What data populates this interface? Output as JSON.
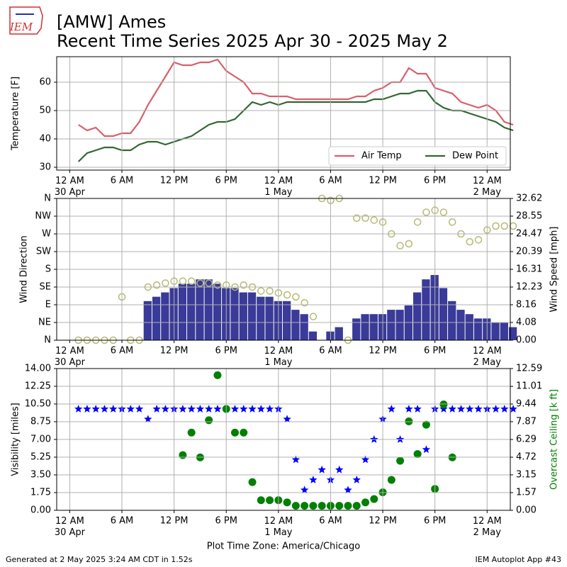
{
  "header": {
    "logo": "IEM",
    "title": "[AMW] Ames",
    "subtitle": "Recent Time Series 2025 Apr 30 - 2025 May 2"
  },
  "chart_data": [
    {
      "type": "line",
      "ylabel": "Temperature [F]",
      "ylim": [
        29,
        69
      ],
      "yticks": [
        30,
        40,
        50,
        60
      ],
      "grid": true,
      "legend": "lower right",
      "xlim": [
        "29 Apr 22:30",
        "2 May 02:40"
      ],
      "xticks": [
        {
          "value": "30 Apr 00:00",
          "label": "12 AM\n30 Apr"
        },
        {
          "value": "30 Apr 06:00",
          "label": "6 AM"
        },
        {
          "value": "30 Apr 12:00",
          "label": "12 PM"
        },
        {
          "value": "30 Apr 18:00",
          "label": "6 PM"
        },
        {
          "value": "1 May 00:00",
          "label": "12 AM\n1 May"
        },
        {
          "value": "1 May 06:00",
          "label": "6 AM"
        },
        {
          "value": "1 May 12:00",
          "label": "12 PM"
        },
        {
          "value": "1 May 18:00",
          "label": "6 PM"
        },
        {
          "value": "2 May 00:00",
          "label": "12 AM\n2 May"
        }
      ],
      "x": [
        "30 Apr 01:00",
        "30 Apr 02:00",
        "30 Apr 03:00",
        "30 Apr 04:00",
        "30 Apr 05:00",
        "30 Apr 06:00",
        "30 Apr 07:00",
        "30 Apr 08:00",
        "30 Apr 09:00",
        "30 Apr 10:00",
        "30 Apr 11:00",
        "30 Apr 12:00",
        "30 Apr 13:00",
        "30 Apr 14:00",
        "30 Apr 15:00",
        "30 Apr 16:00",
        "30 Apr 17:00",
        "30 Apr 18:00",
        "30 Apr 19:00",
        "30 Apr 20:00",
        "30 Apr 21:00",
        "30 Apr 22:00",
        "30 Apr 23:00",
        "1 May 00:00",
        "1 May 01:00",
        "1 May 02:00",
        "1 May 03:00",
        "1 May 04:00",
        "1 May 05:00",
        "1 May 06:00",
        "1 May 07:00",
        "1 May 08:00",
        "1 May 09:00",
        "1 May 10:00",
        "1 May 11:00",
        "1 May 12:00",
        "1 May 13:00",
        "1 May 14:00",
        "1 May 15:00",
        "1 May 16:00",
        "1 May 17:00",
        "1 May 18:00",
        "1 May 19:00",
        "1 May 20:00",
        "1 May 21:00",
        "1 May 22:00",
        "1 May 23:00",
        "2 May 00:00",
        "2 May 01:00",
        "2 May 02:00",
        "2 May 03:00"
      ],
      "series": [
        {
          "name": "Air Temp",
          "color": "#d6606c",
          "values": [
            45,
            43,
            44,
            41,
            41,
            42,
            42,
            46,
            52,
            57,
            62,
            67,
            66,
            66,
            67,
            67,
            68,
            64,
            62,
            60,
            56,
            56,
            55,
            55,
            55,
            54,
            54,
            54,
            54,
            54,
            54,
            54,
            55,
            55,
            57,
            58,
            60,
            60,
            65,
            63,
            63,
            58,
            57,
            56,
            53,
            52,
            51,
            52,
            50,
            46,
            45
          ]
        },
        {
          "name": "Dew Point",
          "color": "#336633",
          "values": [
            32,
            35,
            36,
            37,
            37,
            36,
            36,
            38,
            39,
            39,
            38,
            39,
            40,
            41,
            43,
            45,
            46,
            46,
            47,
            50,
            53,
            52,
            53,
            52,
            53,
            53,
            53,
            53,
            53,
            53,
            53,
            53,
            53,
            53,
            54,
            54,
            55,
            56,
            56,
            57,
            57,
            53,
            51,
            50,
            50,
            49,
            48,
            47,
            46,
            44,
            43
          ]
        }
      ]
    },
    {
      "type": "wind",
      "ylabel": "Wind Direction",
      "y2label": "Wind Speed [mph]",
      "ylim": [
        0,
        360
      ],
      "grid": true,
      "yticks": [
        {
          "value": 0,
          "label": "N"
        },
        {
          "value": 45,
          "label": "NE"
        },
        {
          "value": 90,
          "label": "E"
        },
        {
          "value": 135,
          "label": "SE"
        },
        {
          "value": 180,
          "label": "S"
        },
        {
          "value": 225,
          "label": "SW"
        },
        {
          "value": 270,
          "label": "W"
        },
        {
          "value": 315,
          "label": "NW"
        },
        {
          "value": 360,
          "label": "N"
        }
      ],
      "y2lim": [
        0,
        32.62
      ],
      "y2ticks": [
        {
          "value": 0,
          "label": "0.00"
        },
        4.08,
        8.16,
        12.23,
        16.31,
        20.39,
        24.47,
        28.55,
        32.62
      ],
      "xlim": [
        "29 Apr 22:30",
        "2 May 02:40"
      ],
      "xticks": [
        {
          "value": "30 Apr 00:00",
          "label": "12 AM\n30 Apr"
        },
        {
          "value": "30 Apr 06:00",
          "label": "6 AM"
        },
        {
          "value": "30 Apr 12:00",
          "label": "12 PM"
        },
        {
          "value": "30 Apr 18:00",
          "label": "6 PM"
        },
        {
          "value": "1 May 00:00",
          "label": "12 AM\n1 May"
        },
        {
          "value": "1 May 06:00",
          "label": "6 AM"
        },
        {
          "value": "1 May 12:00",
          "label": "12 PM"
        },
        {
          "value": "1 May 18:00",
          "label": "6 PM"
        },
        {
          "value": "2 May 00:00",
          "label": "12 AM\n2 May"
        }
      ],
      "x": [
        "30 Apr 01:00",
        "30 Apr 02:00",
        "30 Apr 03:00",
        "30 Apr 04:00",
        "30 Apr 05:00",
        "30 Apr 06:00",
        "30 Apr 07:00",
        "30 Apr 08:00",
        "30 Apr 09:00",
        "30 Apr 10:00",
        "30 Apr 11:00",
        "30 Apr 12:00",
        "30 Apr 13:00",
        "30 Apr 14:00",
        "30 Apr 15:00",
        "30 Apr 16:00",
        "30 Apr 17:00",
        "30 Apr 18:00",
        "30 Apr 19:00",
        "30 Apr 20:00",
        "30 Apr 21:00",
        "30 Apr 22:00",
        "30 Apr 23:00",
        "1 May 00:00",
        "1 May 01:00",
        "1 May 02:00",
        "1 May 03:00",
        "1 May 04:00",
        "1 May 05:00",
        "1 May 06:00",
        "1 May 07:00",
        "1 May 08:00",
        "1 May 09:00",
        "1 May 10:00",
        "1 May 11:00",
        "1 May 12:00",
        "1 May 13:00",
        "1 May 14:00",
        "1 May 15:00",
        "1 May 16:00",
        "1 May 17:00",
        "1 May 18:00",
        "1 May 19:00",
        "1 May 20:00",
        "1 May 21:00",
        "1 May 22:00",
        "1 May 23:00",
        "2 May 00:00",
        "2 May 01:00",
        "2 May 02:00",
        "2 May 03:00"
      ],
      "series": [
        {
          "mark": "bar",
          "axis": "y2",
          "color": "#3a3a98",
          "values": [
            0,
            0,
            0,
            0,
            0,
            0,
            0,
            0,
            9,
            10,
            11,
            12,
            13,
            13,
            14,
            14,
            13,
            12,
            12,
            11,
            11,
            10,
            10,
            9,
            9,
            7,
            6,
            2,
            0,
            2,
            3,
            0,
            5,
            6,
            6,
            6,
            7,
            7,
            8,
            11,
            14,
            15,
            12,
            9,
            7,
            6,
            5,
            5,
            4,
            4,
            3
          ]
        },
        {
          "mark": "circle",
          "color": "#b5b973",
          "values": [
            0,
            0,
            0,
            0,
            0,
            110,
            0,
            0,
            135,
            140,
            145,
            150,
            150,
            150,
            145,
            145,
            140,
            140,
            135,
            140,
            135,
            125,
            125,
            120,
            115,
            110,
            95,
            60,
            360,
            355,
            360,
            0,
            310,
            310,
            305,
            300,
            270,
            240,
            245,
            300,
            325,
            330,
            325,
            300,
            270,
            250,
            255,
            280,
            290,
            290,
            290
          ]
        }
      ]
    },
    {
      "type": "scatter",
      "ylabel": "Visibility [miles]",
      "y2label": "Overcast Ceiling [k ft]",
      "y2label_color": "#008000",
      "xlabel": "Plot Time Zone: America/Chicago",
      "grid": true,
      "ylim": [
        0,
        14
      ],
      "yticks": [
        {
          "value": 0,
          "label": "0.00"
        },
        1.75,
        {
          "value": 3.5,
          "label": "3.50"
        },
        5.25,
        {
          "value": 7,
          "label": "7.00"
        },
        8.75,
        {
          "value": 10.5,
          "label": "10.50"
        },
        12.25,
        {
          "value": 14,
          "label": "14.00"
        }
      ],
      "y2lim": [
        0,
        12.59
      ],
      "y2ticks": [
        {
          "value": 0,
          "label": "0.00"
        },
        1.57,
        3.15,
        4.72,
        6.29,
        7.87,
        9.44,
        11.01,
        12.59
      ],
      "xlim": [
        "29 Apr 22:30",
        "2 May 02:40"
      ],
      "xticks": [
        {
          "value": "30 Apr 00:00",
          "label": "12 AM\n30 Apr"
        },
        {
          "value": "30 Apr 06:00",
          "label": "6 AM"
        },
        {
          "value": "30 Apr 12:00",
          "label": "12 PM"
        },
        {
          "value": "30 Apr 18:00",
          "label": "6 PM"
        },
        {
          "value": "1 May 00:00",
          "label": "12 AM\n1 May"
        },
        {
          "value": "1 May 06:00",
          "label": "6 AM"
        },
        {
          "value": "1 May 12:00",
          "label": "12 PM"
        },
        {
          "value": "1 May 18:00",
          "label": "6 PM"
        },
        {
          "value": "2 May 00:00",
          "label": "12 AM\n2 May"
        }
      ],
      "x": [
        "30 Apr 01:00",
        "30 Apr 02:00",
        "30 Apr 03:00",
        "30 Apr 04:00",
        "30 Apr 05:00",
        "30 Apr 06:00",
        "30 Apr 07:00",
        "30 Apr 08:00",
        "30 Apr 09:00",
        "30 Apr 10:00",
        "30 Apr 11:00",
        "30 Apr 12:00",
        "30 Apr 13:00",
        "30 Apr 14:00",
        "30 Apr 15:00",
        "30 Apr 16:00",
        "30 Apr 17:00",
        "30 Apr 18:00",
        "30 Apr 19:00",
        "30 Apr 20:00",
        "30 Apr 21:00",
        "30 Apr 22:00",
        "30 Apr 23:00",
        "1 May 00:00",
        "1 May 01:00",
        "1 May 02:00",
        "1 May 03:00",
        "1 May 04:00",
        "1 May 05:00",
        "1 May 06:00",
        "1 May 07:00",
        "1 May 08:00",
        "1 May 09:00",
        "1 May 10:00",
        "1 May 11:00",
        "1 May 12:00",
        "1 May 13:00",
        "1 May 14:00",
        "1 May 15:00",
        "1 May 16:00",
        "1 May 17:00",
        "1 May 18:00",
        "1 May 19:00",
        "1 May 20:00",
        "1 May 21:00",
        "1 May 22:00",
        "1 May 23:00",
        "2 May 00:00",
        "2 May 01:00",
        "2 May 02:00",
        "2 May 03:00"
      ],
      "series": [
        {
          "mark": "star",
          "color": "#0000ff",
          "values": [
            10,
            10,
            10,
            10,
            10,
            10,
            10,
            10,
            9,
            10,
            10,
            10,
            10,
            10,
            10,
            10,
            10,
            10,
            10,
            10,
            10,
            10,
            10,
            10,
            9,
            5,
            2,
            3,
            4,
            3,
            4,
            2,
            3,
            5,
            7,
            9,
            10,
            7,
            10,
            10,
            6,
            10,
            10,
            10,
            10,
            10,
            10,
            10,
            10,
            10,
            10
          ]
        },
        {
          "mark": "circle",
          "axis": "y2",
          "color": "#008000",
          "values": [
            null,
            null,
            null,
            null,
            null,
            null,
            null,
            null,
            null,
            null,
            null,
            null,
            4.9,
            6.9,
            4.7,
            8.0,
            12.0,
            9.0,
            6.9,
            6.9,
            2.5,
            0.9,
            0.9,
            0.9,
            0.7,
            0.4,
            0.4,
            0.4,
            0.4,
            0.4,
            0.4,
            0.4,
            0.4,
            0.7,
            1.0,
            1.6,
            2.7,
            4.4,
            7.9,
            5.0,
            7.6,
            1.9,
            9.4,
            4.7,
            null,
            null,
            null,
            null,
            null,
            null,
            null
          ]
        }
      ]
    }
  ],
  "footer": {
    "left": "Generated at 2 May 2025 3:24 AM CDT in 1.52s",
    "right": "IEM Autoplot App #43"
  }
}
